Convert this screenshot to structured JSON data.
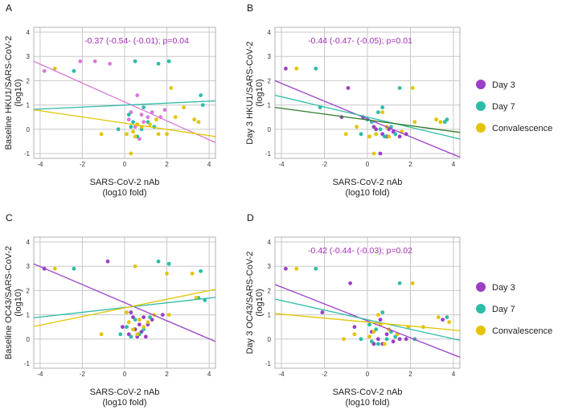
{
  "colors": {
    "day3": "#9b3fc7",
    "day7": "#2dbca7",
    "conv": "#e2c500",
    "stat": "#a12db5",
    "darkfit": "#2f7d2a"
  },
  "legend": [
    {
      "label": "Day 3",
      "color": "#9b3fc7"
    },
    {
      "label": "Day 7",
      "color": "#2dbca7"
    },
    {
      "label": "Convalescence",
      "color": "#e2c500"
    }
  ],
  "chart_data": [
    {
      "panel": "A",
      "type": "scatter",
      "ylabel1": "Baseline HKU1/SARS-CoV-2",
      "ylabel2": "(log10)",
      "xlabel1": "SARS-CoV-2 nAb",
      "xlabel2": "(log10 fold)",
      "xlim": [
        -4.3,
        4.3
      ],
      "ylim": [
        -1.2,
        4.2
      ],
      "xticks": [
        "-4",
        "-2",
        "0",
        "2",
        "4"
      ],
      "yticks": [
        "-1",
        "0",
        "1",
        "2",
        "3",
        "4"
      ],
      "stat": "-0.37 (-0.54- (-0.01); p=0.04",
      "fits": [
        {
          "color": "#d77bd9",
          "x": [
            -4.3,
            4.3
          ],
          "y": [
            2.8,
            -0.55
          ]
        },
        {
          "color": "#2dbca7",
          "x": [
            -4.3,
            4.3
          ],
          "y": [
            0.82,
            1.17
          ]
        },
        {
          "color": "#e2c500",
          "x": [
            -4.3,
            4.3
          ],
          "y": [
            0.8,
            -0.3
          ]
        }
      ],
      "series": [
        {
          "name": "Day 3",
          "color": "#d77bd9",
          "points": [
            [
              -3.8,
              2.4
            ],
            [
              -2.1,
              2.8
            ],
            [
              -1.4,
              2.8
            ],
            [
              -0.7,
              2.7
            ],
            [
              0.6,
              1.4
            ],
            [
              0.3,
              0.7
            ],
            [
              0.8,
              0.6
            ],
            [
              1.1,
              0.5
            ],
            [
              1.3,
              0.7
            ],
            [
              0.9,
              0.3
            ],
            [
              0.5,
              0.1
            ],
            [
              0.7,
              -0.4
            ],
            [
              1.9,
              0.8
            ],
            [
              1.7,
              0.5
            ],
            [
              0.2,
              0.4
            ],
            [
              0.6,
              0.2
            ]
          ]
        },
        {
          "name": "Day 7",
          "color": "#2dbca7",
          "points": [
            [
              -2.4,
              2.4
            ],
            [
              0.5,
              2.8
            ],
            [
              1.6,
              2.7
            ],
            [
              2.1,
              2.8
            ],
            [
              3.6,
              1.4
            ],
            [
              3.7,
              1.0
            ],
            [
              0.2,
              0.6
            ],
            [
              0.4,
              0.3
            ],
            [
              0.9,
              0.9
            ],
            [
              1.1,
              0.3
            ],
            [
              0.6,
              -0.3
            ],
            [
              0.3,
              0.1
            ],
            [
              -0.3,
              0.0
            ],
            [
              1.4,
              0.1
            ],
            [
              0.8,
              0.0
            ]
          ]
        },
        {
          "name": "Convalescence",
          "color": "#e2c500",
          "points": [
            [
              -3.3,
              2.5
            ],
            [
              -1.1,
              -0.2
            ],
            [
              0.1,
              -0.2
            ],
            [
              0.4,
              -0.1
            ],
            [
              0.8,
              0.1
            ],
            [
              1.2,
              0.2
            ],
            [
              1.5,
              0.4
            ],
            [
              2.2,
              1.7
            ],
            [
              2.0,
              -0.2
            ],
            [
              2.8,
              0.9
            ],
            [
              3.3,
              0.4
            ],
            [
              3.5,
              0.3
            ],
            [
              0.5,
              -0.3
            ],
            [
              0.6,
              0.2
            ],
            [
              1.6,
              -0.2
            ],
            [
              2.4,
              0.5
            ],
            [
              0.3,
              -1.0
            ]
          ]
        }
      ]
    },
    {
      "panel": "B",
      "type": "scatter",
      "ylabel1": "Day 3 HKU1/SARS-CoV-2",
      "ylabel2": "(log10)",
      "xlabel1": "SARS-CoV-2 nAb",
      "xlabel2": "(log10 fold)",
      "xlim": [
        -4.3,
        4.3
      ],
      "ylim": [
        -1.2,
        4.2
      ],
      "xticks": [
        "-4",
        "-2",
        "0",
        "2",
        "4"
      ],
      "yticks": [
        "-1",
        "0",
        "1",
        "2",
        "3",
        "4"
      ],
      "stat": "-0.44 (-0.47- (-0.05); p=0.01",
      "fits": [
        {
          "color": "#9b3fc7",
          "x": [
            -4.3,
            4.3
          ],
          "y": [
            2.0,
            -1.15
          ]
        },
        {
          "color": "#2dbca7",
          "x": [
            -4.3,
            4.3
          ],
          "y": [
            1.4,
            -0.4
          ]
        },
        {
          "color": "#2f7d2a",
          "x": [
            -4.3,
            4.3
          ],
          "y": [
            0.9,
            -0.13
          ]
        }
      ],
      "series": [
        {
          "name": "Day 3",
          "color": "#9b3fc7",
          "points": [
            [
              -3.8,
              2.5
            ],
            [
              -1.2,
              0.5
            ],
            [
              -0.9,
              1.7
            ],
            [
              -0.2,
              0.5
            ],
            [
              0.4,
              0.0
            ],
            [
              0.7,
              -0.2
            ],
            [
              0.9,
              -0.3
            ],
            [
              1.2,
              -0.1
            ],
            [
              1.5,
              -0.3
            ],
            [
              1.8,
              -0.2
            ],
            [
              0.6,
              -1.0
            ],
            [
              0.3,
              0.1
            ],
            [
              1.0,
              0.0
            ]
          ]
        },
        {
          "name": "Day 7",
          "color": "#2dbca7",
          "points": [
            [
              -2.4,
              2.5
            ],
            [
              1.5,
              1.7
            ],
            [
              3.6,
              0.3
            ],
            [
              3.7,
              0.4
            ],
            [
              0.5,
              0.7
            ],
            [
              0.7,
              0.9
            ],
            [
              0.2,
              0.3
            ],
            [
              0.4,
              -0.2
            ],
            [
              -0.3,
              -0.2
            ],
            [
              1.1,
              0.1
            ],
            [
              0.8,
              -0.3
            ],
            [
              1.3,
              -0.2
            ],
            [
              0.6,
              0.0
            ],
            [
              -2.2,
              0.9
            ],
            [
              0.0,
              0.4
            ]
          ]
        },
        {
          "name": "Convalescence",
          "color": "#e2c500",
          "points": [
            [
              -3.3,
              2.5
            ],
            [
              2.1,
              1.7
            ],
            [
              3.2,
              0.4
            ],
            [
              3.4,
              0.3
            ],
            [
              -1.0,
              -0.2
            ],
            [
              0.1,
              -0.3
            ],
            [
              0.4,
              -0.2
            ],
            [
              0.7,
              0.7
            ],
            [
              1.0,
              -0.3
            ],
            [
              1.6,
              -0.1
            ],
            [
              2.2,
              0.3
            ],
            [
              0.3,
              -1.0
            ],
            [
              -0.5,
              0.1
            ],
            [
              0.9,
              0.1
            ]
          ]
        }
      ]
    },
    {
      "panel": "C",
      "type": "scatter",
      "ylabel1": "Baseline OC43/SARS-CoV-2",
      "ylabel2": "(log10)",
      "xlabel1": "SARS-CoV-2 nAb",
      "xlabel2": "(log10 fold)",
      "xlim": [
        -4.3,
        4.3
      ],
      "ylim": [
        -1.2,
        4.2
      ],
      "xticks": [
        "-4",
        "-2",
        "0",
        "2",
        "4"
      ],
      "yticks": [
        "-1",
        "0",
        "1",
        "2",
        "3",
        "4"
      ],
      "stat": "",
      "fits": [
        {
          "color": "#9b3fc7",
          "x": [
            -4.3,
            4.3
          ],
          "y": [
            3.1,
            -0.1
          ]
        },
        {
          "color": "#2dbca7",
          "x": [
            -4.3,
            4.3
          ],
          "y": [
            0.88,
            1.72
          ]
        },
        {
          "color": "#e2c500",
          "x": [
            -4.3,
            4.3
          ],
          "y": [
            0.52,
            2.05
          ]
        }
      ],
      "series": [
        {
          "name": "Day 3",
          "color": "#9b3fc7",
          "points": [
            [
              -3.8,
              2.9
            ],
            [
              -0.8,
              3.2
            ],
            [
              1.8,
              1.0
            ],
            [
              0.3,
              1.1
            ],
            [
              0.5,
              0.4
            ],
            [
              0.7,
              0.6
            ],
            [
              0.9,
              0.9
            ],
            [
              1.1,
              0.6
            ],
            [
              0.6,
              0.1
            ],
            [
              0.2,
              0.2
            ],
            [
              0.8,
              0.3
            ],
            [
              1.3,
              0.8
            ],
            [
              0.4,
              0.9
            ],
            [
              -0.1,
              0.5
            ],
            [
              1.0,
              0.1
            ]
          ]
        },
        {
          "name": "Day 7",
          "color": "#2dbca7",
          "points": [
            [
              -2.4,
              2.9
            ],
            [
              1.6,
              3.2
            ],
            [
              2.1,
              3.1
            ],
            [
              3.6,
              2.8
            ],
            [
              3.5,
              1.7
            ],
            [
              3.8,
              1.6
            ],
            [
              0.1,
              0.5
            ],
            [
              0.5,
              0.8
            ],
            [
              0.7,
              0.2
            ],
            [
              1.2,
              0.9
            ],
            [
              0.3,
              0.1
            ],
            [
              -0.2,
              0.2
            ],
            [
              0.9,
              0.4
            ]
          ]
        },
        {
          "name": "Convalescence",
          "color": "#e2c500",
          "points": [
            [
              -3.3,
              2.9
            ],
            [
              0.5,
              3.0
            ],
            [
              2.0,
              2.7
            ],
            [
              3.2,
              2.7
            ],
            [
              -1.1,
              0.2
            ],
            [
              0.2,
              0.7
            ],
            [
              0.4,
              0.4
            ],
            [
              0.7,
              0.8
            ],
            [
              0.9,
              0.5
            ],
            [
              1.4,
              1.0
            ],
            [
              2.1,
              1.0
            ],
            [
              0.1,
              1.1
            ],
            [
              3.4,
              1.7
            ],
            [
              0.6,
              0.2
            ],
            [
              1.1,
              0.7
            ]
          ]
        }
      ]
    },
    {
      "panel": "D",
      "type": "scatter",
      "ylabel1": "Day 3 OC43/SARS-CoV-2",
      "ylabel2": "(log10)",
      "xlabel1": "SARS-CoV-2 nAb",
      "xlabel2": "(log10 fold)",
      "xlim": [
        -4.3,
        4.3
      ],
      "ylim": [
        -1.2,
        4.2
      ],
      "xticks": [
        "-4",
        "-2",
        "0",
        "2",
        "4"
      ],
      "yticks": [
        "-1",
        "0",
        "1",
        "2",
        "3",
        "4"
      ],
      "stat": "-0.42 (-0.44- (-0.03); p=0.02",
      "fits": [
        {
          "color": "#9b3fc7",
          "x": [
            -4.3,
            4.3
          ],
          "y": [
            2.25,
            -0.75
          ]
        },
        {
          "color": "#2dbca7",
          "x": [
            -4.3,
            4.3
          ],
          "y": [
            1.65,
            -0.05
          ]
        },
        {
          "color": "#e2c500",
          "x": [
            -4.3,
            4.3
          ],
          "y": [
            1.05,
            0.35
          ]
        }
      ],
      "series": [
        {
          "name": "Day 3",
          "color": "#9b3fc7",
          "points": [
            [
              -3.8,
              2.9
            ],
            [
              -2.1,
              1.1
            ],
            [
              -0.8,
              2.3
            ],
            [
              -0.6,
              0.5
            ],
            [
              0.2,
              0.3
            ],
            [
              0.5,
              0.0
            ],
            [
              0.7,
              -0.2
            ],
            [
              0.9,
              0.2
            ],
            [
              1.2,
              -0.1
            ],
            [
              1.5,
              0.0
            ],
            [
              1.8,
              0.0
            ],
            [
              0.6,
              0.8
            ],
            [
              3.5,
              0.8
            ],
            [
              0.3,
              -0.2
            ]
          ]
        },
        {
          "name": "Day 7",
          "color": "#2dbca7",
          "points": [
            [
              -2.4,
              2.9
            ],
            [
              1.5,
              2.3
            ],
            [
              3.7,
              0.9
            ],
            [
              0.4,
              0.4
            ],
            [
              0.7,
              1.1
            ],
            [
              0.2,
              -0.1
            ],
            [
              0.5,
              -0.2
            ],
            [
              0.9,
              0.0
            ],
            [
              1.1,
              0.3
            ],
            [
              1.3,
              0.1
            ],
            [
              -0.3,
              0.0
            ],
            [
              2.2,
              0.0
            ],
            [
              0.1,
              0.6
            ]
          ]
        },
        {
          "name": "Convalescence",
          "color": "#e2c500",
          "points": [
            [
              -3.3,
              2.9
            ],
            [
              2.1,
              2.3
            ],
            [
              3.3,
              0.9
            ],
            [
              3.8,
              0.7
            ],
            [
              -1.1,
              0.0
            ],
            [
              0.1,
              0.1
            ],
            [
              0.3,
              0.3
            ],
            [
              0.6,
              0.6
            ],
            [
              0.8,
              -0.2
            ],
            [
              1.0,
              0.4
            ],
            [
              1.4,
              0.2
            ],
            [
              1.9,
              0.5
            ],
            [
              0.5,
              1.0
            ],
            [
              2.6,
              0.5
            ],
            [
              -0.6,
              0.2
            ]
          ]
        }
      ]
    }
  ]
}
